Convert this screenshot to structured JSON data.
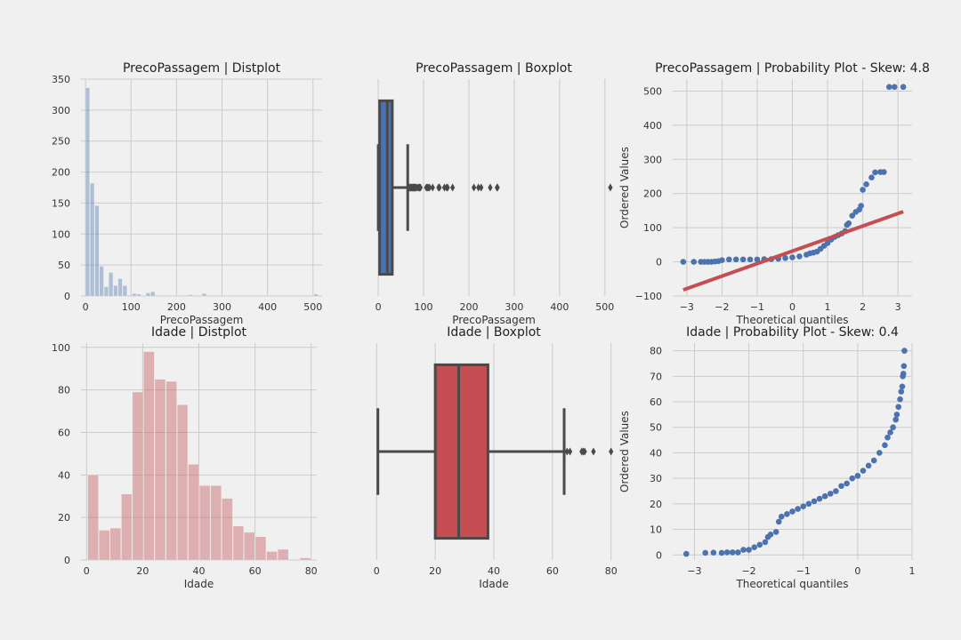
{
  "chart_data": [
    {
      "type": "histogram",
      "title": "PrecoPassagem | Distplot",
      "xlabel": "PrecoPassagem",
      "ylabel": "",
      "xlim": [
        -10,
        520
      ],
      "ylim": [
        0,
        350
      ],
      "xticks": [
        0,
        100,
        200,
        300,
        400,
        500
      ],
      "yticks": [
        0,
        50,
        100,
        150,
        200,
        250,
        300,
        350
      ],
      "grid": true,
      "color": "#4c72b0",
      "bins": [
        {
          "x0": 0,
          "x1": 10.2,
          "count": 336
        },
        {
          "x0": 10.2,
          "x1": 20.5,
          "count": 182
        },
        {
          "x0": 20.5,
          "x1": 30.7,
          "count": 146
        },
        {
          "x0": 30.7,
          "x1": 41.0,
          "count": 48
        },
        {
          "x0": 41.0,
          "x1": 51.2,
          "count": 15
        },
        {
          "x0": 51.2,
          "x1": 61.5,
          "count": 38
        },
        {
          "x0": 61.5,
          "x1": 71.7,
          "count": 17
        },
        {
          "x0": 71.7,
          "x1": 82.0,
          "count": 28
        },
        {
          "x0": 82.0,
          "x1": 92.2,
          "count": 17
        },
        {
          "x0": 102.5,
          "x1": 112.7,
          "count": 4
        },
        {
          "x0": 112.7,
          "x1": 123.0,
          "count": 3
        },
        {
          "x0": 133.2,
          "x1": 143.4,
          "count": 5
        },
        {
          "x0": 143.4,
          "x1": 153.7,
          "count": 7
        },
        {
          "x0": 205.0,
          "x1": 215.2,
          "count": 1
        },
        {
          "x0": 225.5,
          "x1": 235.7,
          "count": 2
        },
        {
          "x0": 256.2,
          "x1": 266.5,
          "count": 4
        },
        {
          "x0": 502.0,
          "x1": 512.3,
          "count": 3
        }
      ]
    },
    {
      "type": "boxplot",
      "title": "PrecoPassagem | Boxplot",
      "xlabel": "PrecoPassagem",
      "xlim": [
        -10,
        520
      ],
      "xticks": [
        0,
        100,
        200,
        300,
        400,
        500
      ],
      "grid": true,
      "color": "#4c72b0",
      "box": {
        "q1": 3,
        "median": 20,
        "q3": 31,
        "whisker_low": 0,
        "whisker_high": 65
      },
      "outliers": [
        66,
        68,
        70,
        71,
        72,
        73,
        75,
        76,
        77,
        78,
        79,
        80,
        81,
        82,
        83,
        86,
        89,
        90,
        91,
        93,
        106,
        108,
        110,
        113,
        120,
        133,
        135,
        146,
        151,
        153,
        164,
        211,
        221,
        227,
        247,
        262,
        263,
        512
      ]
    },
    {
      "type": "scatter",
      "title": "PrecoPassagem | Probability Plot - Skew: 4.8",
      "xlabel": "Theoretical quantiles",
      "ylabel": "Ordered Values",
      "xlim": [
        -3.4,
        3.4
      ],
      "ylim": [
        -100,
        535
      ],
      "xticks": [
        -3,
        -2,
        -1,
        0,
        1,
        2,
        3
      ],
      "yticks": [
        -100,
        0,
        100,
        200,
        300,
        400,
        500
      ],
      "grid": true,
      "points_color": "#4c72b0",
      "points": [
        [
          -3.1,
          0
        ],
        [
          -2.8,
          0
        ],
        [
          -2.6,
          0
        ],
        [
          -2.5,
          0
        ],
        [
          -2.4,
          0
        ],
        [
          -2.3,
          0
        ],
        [
          -2.2,
          1
        ],
        [
          -2.1,
          2
        ],
        [
          -2.0,
          5
        ],
        [
          -1.8,
          7
        ],
        [
          -1.6,
          7
        ],
        [
          -1.4,
          7
        ],
        [
          -1.2,
          7
        ],
        [
          -1.0,
          7
        ],
        [
          -0.8,
          8
        ],
        [
          -0.6,
          8
        ],
        [
          -0.4,
          9
        ],
        [
          -0.2,
          11
        ],
        [
          0.0,
          13
        ],
        [
          0.2,
          16
        ],
        [
          0.4,
          21
        ],
        [
          0.5,
          25
        ],
        [
          0.6,
          27
        ],
        [
          0.7,
          30
        ],
        [
          0.8,
          38
        ],
        [
          0.9,
          47
        ],
        [
          1.0,
          55
        ],
        [
          1.1,
          65
        ],
        [
          1.2,
          73
        ],
        [
          1.3,
          78
        ],
        [
          1.4,
          83
        ],
        [
          1.5,
          90
        ],
        [
          1.55,
          108
        ],
        [
          1.6,
          113
        ],
        [
          1.7,
          135
        ],
        [
          1.8,
          146
        ],
        [
          1.9,
          153
        ],
        [
          1.95,
          164
        ],
        [
          2.0,
          211
        ],
        [
          2.1,
          227
        ],
        [
          2.25,
          247
        ],
        [
          2.35,
          262
        ],
        [
          2.5,
          263
        ],
        [
          2.6,
          263
        ],
        [
          2.75,
          512
        ],
        [
          2.9,
          512
        ],
        [
          3.15,
          512
        ]
      ],
      "fit_line": {
        "x": [
          -3.1,
          3.15
        ],
        "y": [
          -82,
          147
        ],
        "color": "#c44e52"
      }
    },
    {
      "type": "histogram",
      "title": "Idade | Distplot",
      "xlabel": "Idade",
      "ylabel": "",
      "xlim": [
        -2,
        82
      ],
      "ylim": [
        0,
        102
      ],
      "xticks": [
        0,
        20,
        40,
        60,
        80
      ],
      "yticks": [
        0,
        20,
        40,
        60,
        80,
        100
      ],
      "grid": true,
      "color": "#c44e52",
      "bins": [
        {
          "x0": 0.42,
          "x1": 4.4,
          "count": 40
        },
        {
          "x0": 4.4,
          "x1": 8.4,
          "count": 14
        },
        {
          "x0": 8.4,
          "x1": 12.4,
          "count": 15
        },
        {
          "x0": 12.4,
          "x1": 16.3,
          "count": 31
        },
        {
          "x0": 16.3,
          "x1": 20.3,
          "count": 79
        },
        {
          "x0": 20.3,
          "x1": 24.3,
          "count": 98
        },
        {
          "x0": 24.3,
          "x1": 28.3,
          "count": 85
        },
        {
          "x0": 28.3,
          "x1": 32.3,
          "count": 84
        },
        {
          "x0": 32.3,
          "x1": 36.2,
          "count": 73
        },
        {
          "x0": 36.2,
          "x1": 40.2,
          "count": 45
        },
        {
          "x0": 40.2,
          "x1": 44.2,
          "count": 35
        },
        {
          "x0": 44.2,
          "x1": 48.2,
          "count": 35
        },
        {
          "x0": 48.2,
          "x1": 52.2,
          "count": 29
        },
        {
          "x0": 52.2,
          "x1": 56.1,
          "count": 16
        },
        {
          "x0": 56.1,
          "x1": 60.1,
          "count": 13
        },
        {
          "x0": 60.1,
          "x1": 64.1,
          "count": 11
        },
        {
          "x0": 64.1,
          "x1": 68.1,
          "count": 4
        },
        {
          "x0": 68.1,
          "x1": 72.1,
          "count": 5
        },
        {
          "x0": 76.0,
          "x1": 80.0,
          "count": 1
        }
      ]
    },
    {
      "type": "boxplot",
      "title": "Idade | Boxplot",
      "xlabel": "Idade",
      "xlim": [
        -1,
        81
      ],
      "xticks": [
        0,
        20,
        40,
        60,
        80
      ],
      "grid": true,
      "color": "#c44e52",
      "box": {
        "q1": 20,
        "median": 28,
        "q3": 38,
        "whisker_low": 0.42,
        "whisker_high": 64
      },
      "outliers": [
        65,
        66,
        70,
        70.5,
        71,
        74,
        80
      ]
    },
    {
      "type": "scatter",
      "title": "Idade | Probability Plot - Skew: 0.4",
      "xlabel": "Theoretical quantiles",
      "ylabel": "Ordered Values",
      "xlim": [
        -3.4,
        1.0
      ],
      "ylim": [
        -2,
        83
      ],
      "xticks": [
        -3,
        -2,
        -1,
        0,
        1
      ],
      "yticks": [
        0,
        10,
        20,
        30,
        40,
        50,
        60,
        70,
        80
      ],
      "grid": true,
      "points_color": "#4c72b0",
      "points": [
        [
          -3.15,
          0.4
        ],
        [
          -2.8,
          0.8
        ],
        [
          -2.65,
          0.9
        ],
        [
          -2.5,
          0.8
        ],
        [
          -2.4,
          1
        ],
        [
          -2.3,
          1
        ],
        [
          -2.2,
          1
        ],
        [
          -2.1,
          2
        ],
        [
          -2.0,
          2
        ],
        [
          -1.9,
          3
        ],
        [
          -1.8,
          4
        ],
        [
          -1.7,
          5
        ],
        [
          -1.65,
          7
        ],
        [
          -1.6,
          8
        ],
        [
          -1.5,
          9
        ],
        [
          -1.45,
          13
        ],
        [
          -1.4,
          15
        ],
        [
          -1.3,
          16
        ],
        [
          -1.2,
          17
        ],
        [
          -1.1,
          18
        ],
        [
          -1.0,
          19
        ],
        [
          -0.9,
          20
        ],
        [
          -0.8,
          21
        ],
        [
          -0.7,
          22
        ],
        [
          -0.6,
          23
        ],
        [
          -0.5,
          24
        ],
        [
          -0.4,
          25
        ],
        [
          -0.3,
          27
        ],
        [
          -0.2,
          28
        ],
        [
          -0.1,
          30
        ],
        [
          0.0,
          31
        ],
        [
          0.1,
          33
        ],
        [
          0.2,
          35
        ],
        [
          0.3,
          37
        ],
        [
          0.4,
          40
        ],
        [
          0.5,
          43
        ],
        [
          0.55,
          46
        ],
        [
          0.6,
          48
        ],
        [
          0.65,
          50
        ],
        [
          0.7,
          53
        ],
        [
          0.72,
          55
        ],
        [
          0.75,
          58
        ],
        [
          0.78,
          61
        ],
        [
          0.8,
          64
        ],
        [
          0.82,
          66
        ],
        [
          0.83,
          70
        ],
        [
          0.84,
          71
        ],
        [
          0.85,
          74
        ],
        [
          0.86,
          80
        ]
      ],
      "fit_line_visible": false
    }
  ]
}
